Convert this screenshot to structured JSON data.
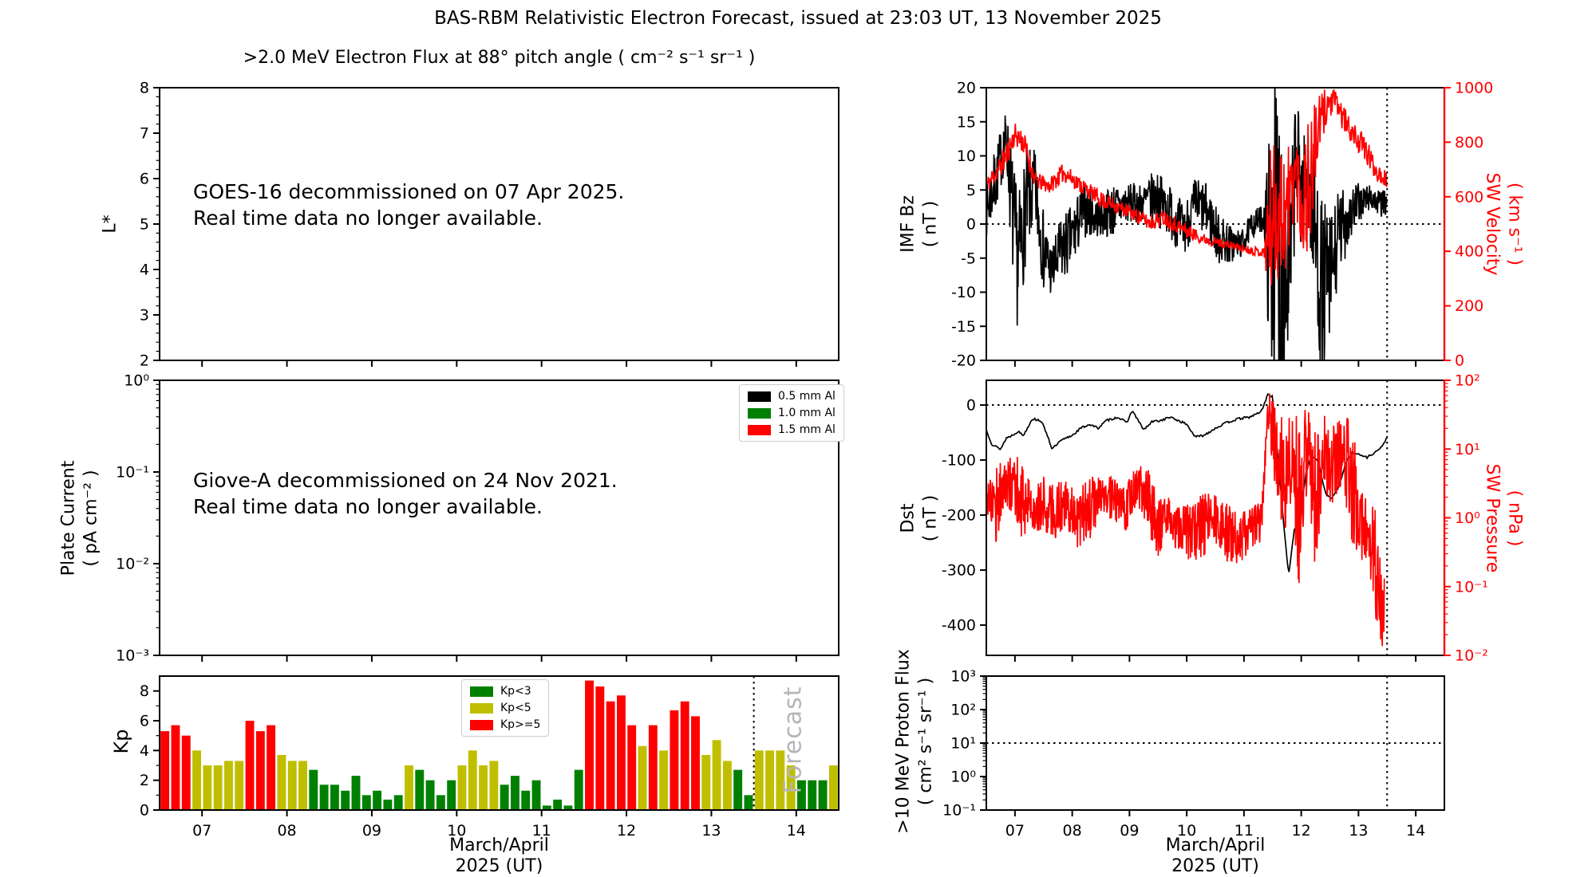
{
  "title": "BAS-RBM Relativistic Electron Forecast, issued at 23:03 UT, 13 November 2025",
  "colors": {
    "black": "#000000",
    "red": "#ff0000",
    "green": "#008000",
    "yellow": "#bfbf00",
    "forecast_gray": "#b5b5b5"
  },
  "chart_data": [
    {
      "id": "electron_flux",
      "type": "line",
      "title": ">2.0 MeV Electron Flux at 88° pitch angle ( cm⁻² s⁻¹ sr⁻¹ )",
      "ylabel": "L*",
      "xlim": [
        6.5,
        14.5
      ],
      "ylim": [
        2,
        8
      ],
      "yticks": [
        2,
        3,
        4,
        5,
        6,
        7,
        8
      ],
      "annotation": "GOES-16 decommissioned on 07 Apr 2025.\nReal time data no longer available.",
      "series": []
    },
    {
      "id": "plate_current",
      "type": "line",
      "ylabel_name": "Plate Current",
      "ylabel_unit": "( pA cm⁻² )",
      "yscale": "log",
      "ylim_log": [
        -3,
        0
      ],
      "ytick_exp": [
        0,
        -1,
        -2,
        -3
      ],
      "ytick_labels": [
        "10⁰",
        "10⁻¹",
        "10⁻²",
        "10⁻³"
      ],
      "legend": [
        {
          "label": "0.5 mm Al",
          "color": "#000000"
        },
        {
          "label": "1.0 mm Al",
          "color": "#008000"
        },
        {
          "label": "1.5 mm Al",
          "color": "#ff0000"
        }
      ],
      "annotation": "Giove-A decommissioned on 24 Nov 2021.\nReal time data no longer available.",
      "series": []
    },
    {
      "id": "kp",
      "type": "bar",
      "ylabel": "Kp",
      "xlabel_line1": "March/April",
      "xlabel_line2": "2025 (UT)",
      "xlim": [
        6.5,
        14.5
      ],
      "ylim": [
        0,
        9
      ],
      "yticks": [
        0,
        2,
        4,
        6,
        8
      ],
      "xticks": [
        7,
        8,
        9,
        10,
        11,
        12,
        13,
        14
      ],
      "xtick_labels": [
        "07",
        "08",
        "09",
        "10",
        "11",
        "12",
        "13",
        "14"
      ],
      "legend": [
        {
          "label": "Kp<3",
          "color": "#008000"
        },
        {
          "label": "Kp<5",
          "color": "#bfbf00"
        },
        {
          "label": "Kp>=5",
          "color": "#ff0000"
        }
      ],
      "color_rule": {
        "green_below": 3,
        "yellow_below": 5
      },
      "bar_interval_hours": 3,
      "forecast_label": "Forecast",
      "forecast_start_day": 13.5,
      "values": [
        5.3,
        5.7,
        5.0,
        4.0,
        3.0,
        3.0,
        3.3,
        3.3,
        6.0,
        5.3,
        5.7,
        3.7,
        3.3,
        3.3,
        2.7,
        1.7,
        1.7,
        1.3,
        2.3,
        1.0,
        1.3,
        0.7,
        1.0,
        3.0,
        2.7,
        2.0,
        1.0,
        2.0,
        3.0,
        4.0,
        3.0,
        3.3,
        1.7,
        2.3,
        1.3,
        2.0,
        0.3,
        0.7,
        0.3,
        2.7,
        8.7,
        8.3,
        7.3,
        7.7,
        5.7,
        4.3,
        5.7,
        4.0,
        6.7,
        7.3,
        6.3,
        3.7,
        4.7,
        3.3,
        2.7,
        1.0,
        4.0,
        4.0,
        4.0,
        3.0,
        2.0,
        2.0,
        2.0,
        3.0
      ]
    },
    {
      "id": "imf_sw",
      "type": "line",
      "ylabel_left_name": "IMF Bz",
      "ylabel_left_unit": "( nT )",
      "ylabel_right_name": "SW Velocity",
      "ylabel_right_unit": "( km s⁻¹ )",
      "xlim": [
        6.5,
        14.5
      ],
      "ylim_left": [
        -20,
        20
      ],
      "yticks_left": [
        20,
        15,
        10,
        5,
        0,
        -5,
        -10,
        -15,
        -20
      ],
      "ylim_right": [
        0,
        1000
      ],
      "yticks_right": [
        1000,
        800,
        600,
        400,
        200,
        0
      ],
      "hline_left": 0,
      "vline": 13.5,
      "series": [
        {
          "name": "IMF Bz",
          "color": "#000000",
          "axis": "left",
          "anchors_day_mean_amp": [
            [
              6.5,
              2,
              4
            ],
            [
              6.65,
              6,
              5
            ],
            [
              6.85,
              13,
              4
            ],
            [
              6.95,
              2,
              9
            ],
            [
              7.05,
              -6,
              10
            ],
            [
              7.2,
              3,
              8
            ],
            [
              7.35,
              5,
              6
            ],
            [
              7.5,
              -4,
              6
            ],
            [
              7.65,
              -7,
              4
            ],
            [
              7.8,
              -4,
              5
            ],
            [
              8.0,
              -2,
              5
            ],
            [
              8.2,
              2,
              4
            ],
            [
              8.45,
              1,
              3
            ],
            [
              8.7,
              2,
              4
            ],
            [
              8.95,
              3,
              3
            ],
            [
              9.2,
              3,
              3
            ],
            [
              9.45,
              4,
              4
            ],
            [
              9.7,
              2,
              4
            ],
            [
              9.95,
              -1,
              4
            ],
            [
              10.15,
              3,
              4
            ],
            [
              10.35,
              2,
              4
            ],
            [
              10.55,
              -2,
              4
            ],
            [
              10.75,
              -3,
              3
            ],
            [
              10.95,
              -3,
              2
            ],
            [
              11.15,
              0,
              2
            ],
            [
              11.35,
              1,
              2
            ],
            [
              11.45,
              -3,
              18
            ],
            [
              11.55,
              0,
              25
            ],
            [
              11.65,
              -5,
              25
            ],
            [
              11.8,
              -8,
              12
            ],
            [
              11.9,
              10,
              10
            ],
            [
              12.0,
              5,
              10
            ],
            [
              12.1,
              6,
              6
            ],
            [
              12.2,
              2,
              10
            ],
            [
              12.35,
              -10,
              14
            ],
            [
              12.5,
              -8,
              10
            ],
            [
              12.65,
              -2,
              7
            ],
            [
              12.8,
              1,
              5
            ],
            [
              13.0,
              3,
              3
            ],
            [
              13.2,
              4,
              2
            ],
            [
              13.35,
              3,
              2
            ],
            [
              13.5,
              3,
              2
            ]
          ]
        },
        {
          "name": "SW Velocity",
          "color": "#ff0000",
          "axis": "right",
          "anchors_day_mean_amp": [
            [
              6.5,
              640,
              30
            ],
            [
              6.8,
              730,
              50
            ],
            [
              7.0,
              830,
              40
            ],
            [
              7.15,
              800,
              50
            ],
            [
              7.35,
              660,
              30
            ],
            [
              7.6,
              640,
              30
            ],
            [
              7.85,
              690,
              35
            ],
            [
              8.1,
              650,
              30
            ],
            [
              8.5,
              590,
              30
            ],
            [
              9.0,
              545,
              25
            ],
            [
              9.35,
              505,
              30
            ],
            [
              9.6,
              525,
              30
            ],
            [
              9.95,
              480,
              30
            ],
            [
              10.3,
              445,
              20
            ],
            [
              10.7,
              425,
              15
            ],
            [
              11.1,
              405,
              15
            ],
            [
              11.35,
              395,
              20
            ],
            [
              11.45,
              500,
              280
            ],
            [
              11.6,
              560,
              270
            ],
            [
              11.75,
              550,
              260
            ],
            [
              11.9,
              700,
              120
            ],
            [
              12.0,
              600,
              250
            ],
            [
              12.15,
              650,
              250
            ],
            [
              12.3,
              850,
              120
            ],
            [
              12.45,
              940,
              70
            ],
            [
              12.6,
              950,
              40
            ],
            [
              12.75,
              880,
              50
            ],
            [
              12.9,
              830,
              40
            ],
            [
              13.1,
              780,
              50
            ],
            [
              13.3,
              700,
              40
            ],
            [
              13.5,
              660,
              30
            ]
          ]
        }
      ]
    },
    {
      "id": "dst_pressure",
      "type": "line",
      "ylabel_left_name": "Dst",
      "ylabel_left_unit": "( nT )",
      "ylabel_right_name": "SW Pressure",
      "ylabel_right_unit": "( nPa )",
      "xlim": [
        6.5,
        14.5
      ],
      "ylim_left": [
        -455,
        45
      ],
      "yticks_left": [
        0,
        -100,
        -200,
        -300,
        -400
      ],
      "yscale_right": "log",
      "ylim_right_log": [
        -2,
        2
      ],
      "ytick_right_exp": [
        2,
        1,
        0,
        -1,
        -2
      ],
      "ytick_right_labels": [
        "10²",
        "10¹",
        "10⁰",
        "10⁻¹",
        "10⁻²"
      ],
      "hline_left": 0,
      "vline": 13.5,
      "series": [
        {
          "name": "Dst",
          "color": "#000000",
          "axis": "left",
          "noise_amp": 2,
          "anchors_day_value": [
            [
              6.5,
              -45
            ],
            [
              6.6,
              -72
            ],
            [
              6.75,
              -80
            ],
            [
              6.85,
              -60
            ],
            [
              6.95,
              -55
            ],
            [
              7.05,
              -48
            ],
            [
              7.15,
              -55
            ],
            [
              7.3,
              -25
            ],
            [
              7.45,
              -28
            ],
            [
              7.55,
              -50
            ],
            [
              7.65,
              -80
            ],
            [
              7.8,
              -65
            ],
            [
              8.0,
              -55
            ],
            [
              8.15,
              -42
            ],
            [
              8.3,
              -35
            ],
            [
              8.45,
              -42
            ],
            [
              8.6,
              -28
            ],
            [
              8.8,
              -22
            ],
            [
              8.95,
              -32
            ],
            [
              9.05,
              -10
            ],
            [
              9.15,
              -28
            ],
            [
              9.25,
              -45
            ],
            [
              9.4,
              -30
            ],
            [
              9.55,
              -28
            ],
            [
              9.7,
              -22
            ],
            [
              9.85,
              -28
            ],
            [
              10.0,
              -35
            ],
            [
              10.15,
              -58
            ],
            [
              10.3,
              -55
            ],
            [
              10.5,
              -42
            ],
            [
              10.7,
              -32
            ],
            [
              10.9,
              -25
            ],
            [
              11.1,
              -22
            ],
            [
              11.3,
              -12
            ],
            [
              11.42,
              20
            ],
            [
              11.5,
              15
            ],
            [
              11.58,
              -80
            ],
            [
              11.68,
              -200
            ],
            [
              11.78,
              -310
            ],
            [
              11.88,
              -225
            ],
            [
              11.98,
              -210
            ],
            [
              12.08,
              -125
            ],
            [
              12.18,
              -90
            ],
            [
              12.3,
              -105
            ],
            [
              12.42,
              -160
            ],
            [
              12.52,
              -170
            ],
            [
              12.65,
              -150
            ],
            [
              12.78,
              -105
            ],
            [
              12.9,
              -85
            ],
            [
              13.0,
              -90
            ],
            [
              13.15,
              -95
            ],
            [
              13.3,
              -85
            ],
            [
              13.42,
              -75
            ],
            [
              13.5,
              -58
            ]
          ]
        },
        {
          "name": "SW Pressure",
          "color": "#ff0000",
          "axis": "right_log",
          "anchors_day_log10_amp": [
            [
              6.5,
              0.35,
              0.25
            ],
            [
              6.65,
              0.2,
              0.7
            ],
            [
              6.8,
              0.45,
              0.35
            ],
            [
              7.0,
              0.5,
              0.5
            ],
            [
              7.15,
              0.2,
              0.6
            ],
            [
              7.3,
              0.15,
              0.35
            ],
            [
              7.5,
              0.2,
              0.4
            ],
            [
              7.7,
              0.1,
              0.45
            ],
            [
              7.9,
              0.2,
              0.35
            ],
            [
              8.1,
              0.0,
              0.45
            ],
            [
              8.3,
              0.15,
              0.5
            ],
            [
              8.5,
              0.3,
              0.3
            ],
            [
              8.7,
              0.25,
              0.35
            ],
            [
              8.9,
              0.1,
              0.35
            ],
            [
              9.1,
              0.45,
              0.35
            ],
            [
              9.3,
              0.3,
              0.5
            ],
            [
              9.5,
              -0.15,
              0.45
            ],
            [
              9.7,
              -0.05,
              0.35
            ],
            [
              9.9,
              -0.2,
              0.35
            ],
            [
              10.1,
              -0.2,
              0.45
            ],
            [
              10.3,
              -0.1,
              0.45
            ],
            [
              10.5,
              0.0,
              0.35
            ],
            [
              10.7,
              -0.2,
              0.45
            ],
            [
              10.9,
              -0.3,
              0.4
            ],
            [
              11.1,
              -0.2,
              0.35
            ],
            [
              11.3,
              -0.05,
              0.3
            ],
            [
              11.42,
              1.6,
              0.3
            ],
            [
              11.55,
              1.0,
              0.7
            ],
            [
              11.7,
              0.5,
              0.9
            ],
            [
              11.85,
              0.9,
              0.7
            ],
            [
              11.95,
              0.2,
              1.3
            ],
            [
              12.1,
              1.0,
              0.6
            ],
            [
              12.25,
              0.3,
              1.1
            ],
            [
              12.4,
              1.0,
              0.5
            ],
            [
              12.55,
              0.7,
              0.8
            ],
            [
              12.7,
              1.0,
              0.5
            ],
            [
              12.85,
              0.6,
              0.9
            ],
            [
              13.0,
              0.1,
              0.7
            ],
            [
              13.15,
              -0.2,
              0.6
            ],
            [
              13.3,
              -0.7,
              0.9
            ],
            [
              13.45,
              -1.4,
              0.6
            ]
          ]
        }
      ]
    },
    {
      "id": "proton_flux",
      "type": "line",
      "ylabel_name": ">10 MeV Proton Flux",
      "ylabel_unit": "( cm² s⁻¹ sr⁻¹ )",
      "xlabel_line1": "March/April",
      "xlabel_line2": "2025 (UT)",
      "xlim": [
        6.5,
        14.5
      ],
      "yscale": "log",
      "ylim_log": [
        -1,
        3
      ],
      "ytick_exp": [
        3,
        2,
        1,
        0,
        -1
      ],
      "ytick_labels": [
        "10³",
        "10²",
        "10¹",
        "10⁰",
        "10⁻¹"
      ],
      "xticks": [
        7,
        8,
        9,
        10,
        11,
        12,
        13,
        14
      ],
      "xtick_labels": [
        "07",
        "08",
        "09",
        "10",
        "11",
        "12",
        "13",
        "14"
      ],
      "hline_log": 1,
      "vline": 13.5,
      "series": []
    }
  ]
}
